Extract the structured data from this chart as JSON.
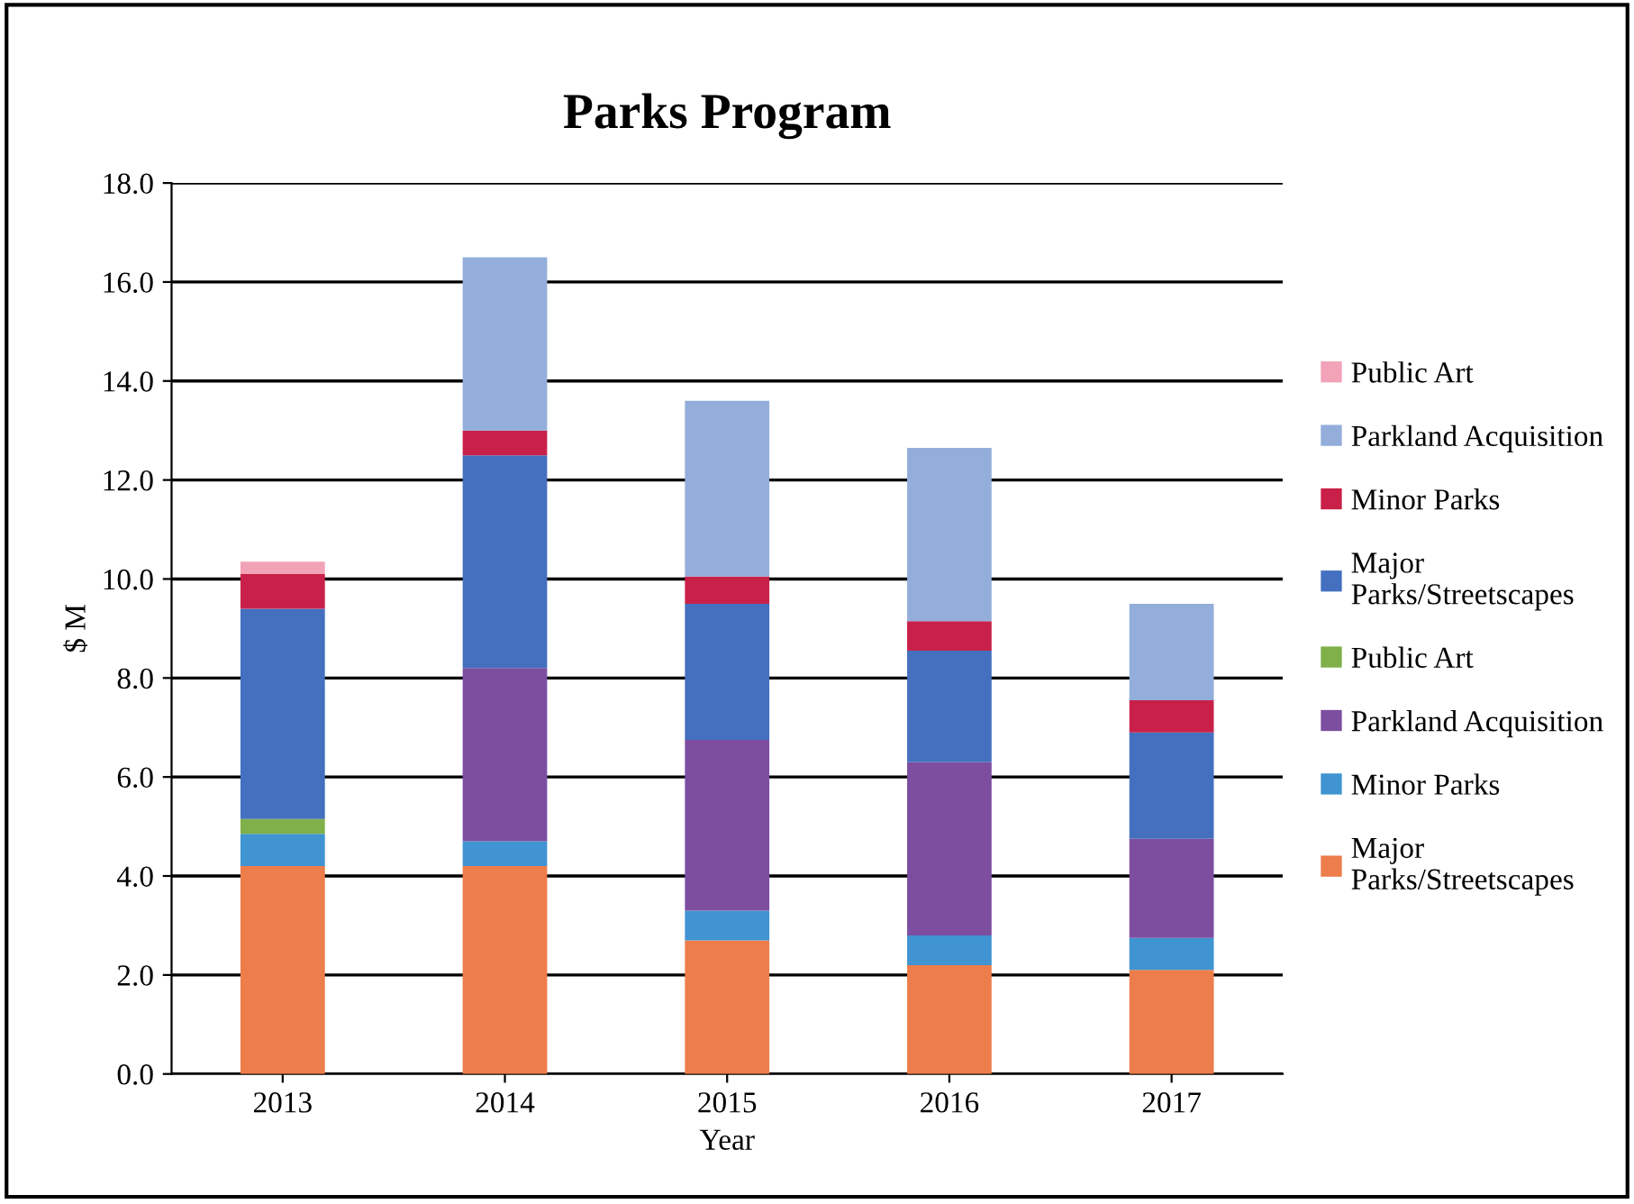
{
  "chart_data": {
    "type": "bar",
    "title": "Parks Program",
    "xlabel": "Year",
    "ylabel": "$ M",
    "categories": [
      "2013",
      "2014",
      "2015",
      "2016",
      "2017"
    ],
    "stacked": true,
    "series": [
      {
        "name": "Major\nParks/Streetscapes",
        "color": "#ed7d4a",
        "values": [
          4.2,
          4.2,
          2.7,
          2.2,
          2.1
        ]
      },
      {
        "name": "Minor Parks",
        "color": "#3f94d1",
        "values": [
          0.65,
          0.5,
          0.6,
          0.6,
          0.65
        ]
      },
      {
        "name": "Parkland Acquisition",
        "color": "#7d4ea0",
        "values": [
          null,
          3.5,
          3.45,
          3.5,
          2.0
        ]
      },
      {
        "name": "Public Art",
        "color": "#7fb04a",
        "values": [
          0.3,
          null,
          null,
          null,
          null
        ]
      },
      {
        "name": "Major\nParks/Streetscapes",
        "color": "#4470bf",
        "values": [
          4.25,
          4.3,
          2.75,
          2.25,
          2.15
        ]
      },
      {
        "name": "Minor Parks",
        "color": "#c9204a",
        "values": [
          0.7,
          0.5,
          0.55,
          0.6,
          0.65
        ]
      },
      {
        "name": "Parkland Acquisition",
        "color": "#93aedb",
        "values": [
          null,
          3.5,
          3.55,
          3.5,
          1.95
        ]
      },
      {
        "name": "Public Art",
        "color": "#f2a3b8",
        "values": [
          0.25,
          null,
          null,
          null,
          null
        ]
      }
    ],
    "ylim": [
      0,
      18
    ],
    "yticks": [
      {
        "value": 0,
        "label": "0.0"
      },
      {
        "value": 2,
        "label": "2.0"
      },
      {
        "value": 4,
        "label": "4.0"
      },
      {
        "value": 6,
        "label": "6.0"
      },
      {
        "value": 8,
        "label": "8.0"
      },
      {
        "value": 10,
        "label": "10.0"
      },
      {
        "value": 12,
        "label": "12.0"
      },
      {
        "value": 14,
        "label": "14.0"
      },
      {
        "value": 16,
        "label": "16.0"
      },
      {
        "value": 18,
        "label": "18.0"
      }
    ],
    "grid": "y",
    "legend": "right"
  }
}
